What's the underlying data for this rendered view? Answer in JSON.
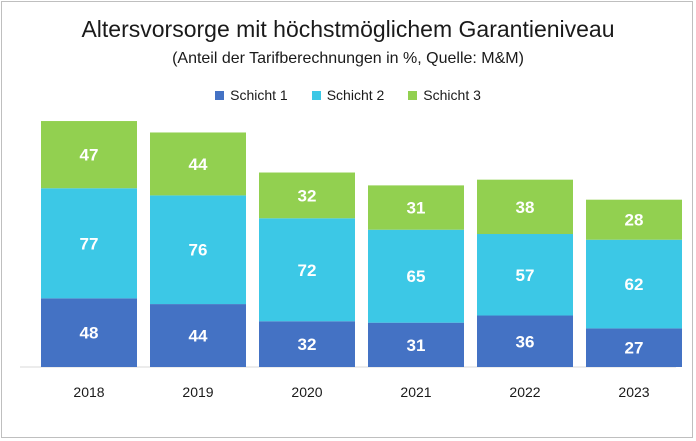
{
  "chart_data": {
    "type": "bar",
    "stacked": true,
    "title": "Altersvorsorge mit höchstmöglichem Garantieniveau",
    "subtitle": "(Anteil der Tarifberechnungen in %, Quelle: M&M)",
    "categories": [
      "2018",
      "2019",
      "2020",
      "2021",
      "2022",
      "2023"
    ],
    "series": [
      {
        "name": "Schicht 1",
        "color": "#4472c4",
        "values": [
          48,
          44,
          32,
          31,
          36,
          27
        ]
      },
      {
        "name": "Schicht 2",
        "color": "#3cc8e6",
        "values": [
          77,
          76,
          72,
          65,
          57,
          62
        ]
      },
      {
        "name": "Schicht 3",
        "color": "#92d050",
        "values": [
          47,
          44,
          32,
          31,
          38,
          28
        ]
      }
    ],
    "legend_position": "top",
    "grid": false
  }
}
